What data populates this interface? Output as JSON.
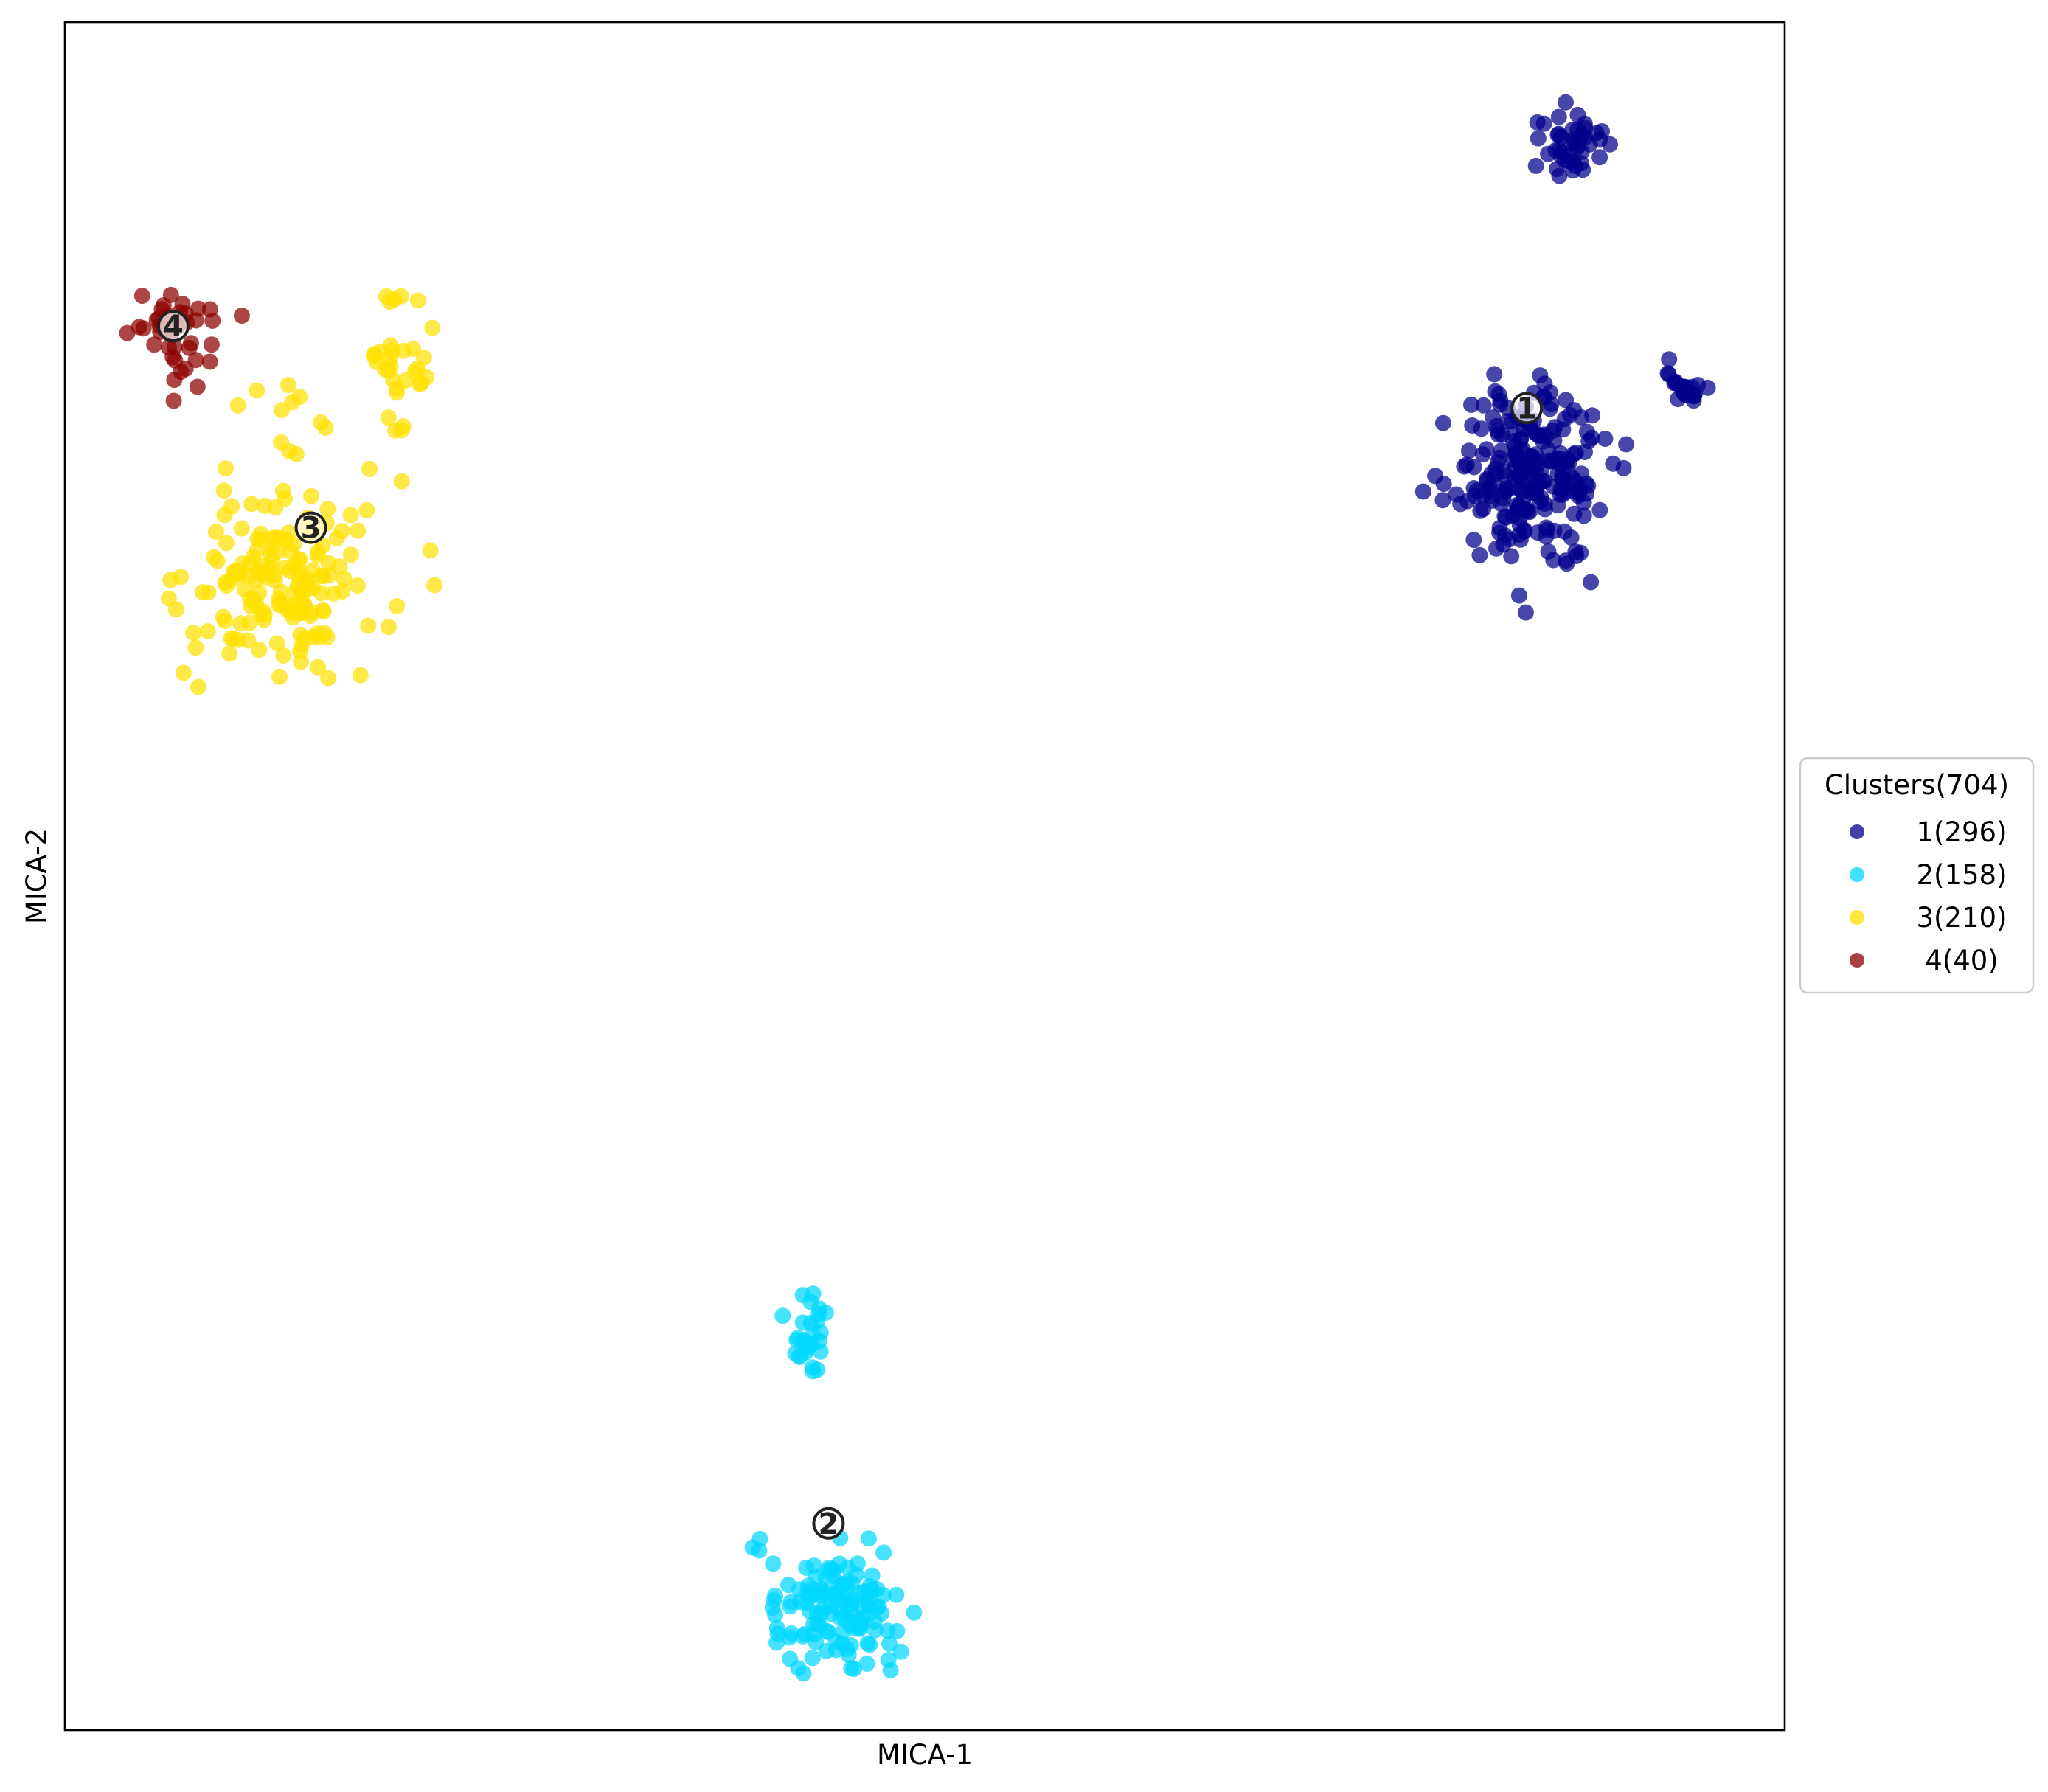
{
  "chart_data": {
    "type": "scatter",
    "title": "",
    "xlabel": "MICA-1",
    "ylabel": "MICA-2",
    "xlim": [
      0,
      100
    ],
    "ylim": [
      0,
      100
    ],
    "grid": false,
    "x_ticks_visible": false,
    "y_ticks_visible": false,
    "legend": {
      "title": "Clusters(704)",
      "placement": "right-outside-center",
      "entries": [
        "1(296)",
        "2(158)",
        "3(210)",
        "4(40)"
      ]
    },
    "series": [
      {
        "name": "1(296)",
        "cluster_label": "1",
        "color": "#00008B",
        "count": 296,
        "centroid": [
          85.0,
          77.4
        ],
        "regions": [
          {
            "cx": 85.3,
            "cy": 73.5,
            "sx": 2.3,
            "sy": 2.5,
            "fraction": 0.78
          },
          {
            "cx": 87.8,
            "cy": 92.8,
            "sx": 0.9,
            "sy": 1.1,
            "fraction": 0.15
          },
          {
            "cx": 94.2,
            "cy": 78.5,
            "sx": 0.6,
            "sy": 0.5,
            "fraction": 0.07
          }
        ]
      },
      {
        "name": "2(158)",
        "cluster_label": "2",
        "color": "#00D7FF",
        "count": 158,
        "centroid": [
          44.4,
          12.1
        ],
        "regions": [
          {
            "cx": 44.6,
            "cy": 7.0,
            "sx": 2.0,
            "sy": 1.7,
            "fraction": 0.82
          },
          {
            "cx": 43.4,
            "cy": 22.8,
            "sx": 0.5,
            "sy": 1.6,
            "fraction": 0.18
          }
        ]
      },
      {
        "name": "3(210)",
        "cluster_label": "3",
        "color": "#FFE000",
        "count": 210,
        "centroid": [
          14.3,
          70.4
        ],
        "regions": [
          {
            "cx": 12.8,
            "cy": 67.2,
            "sx": 2.6,
            "sy": 2.6,
            "fraction": 0.76
          },
          {
            "cx": 19.4,
            "cy": 79.8,
            "sx": 0.9,
            "sy": 2.5,
            "fraction": 0.16
          },
          {
            "cx": 12.0,
            "cy": 76.0,
            "sx": 2.0,
            "sy": 2.8,
            "fraction": 0.08
          }
        ]
      },
      {
        "name": "4(40)",
        "cluster_label": "4",
        "color": "#8B0000",
        "count": 40,
        "centroid": [
          6.3,
          82.2
        ],
        "regions": [
          {
            "cx": 6.2,
            "cy": 82.3,
            "sx": 1.2,
            "sy": 0.9,
            "fraction": 0.85
          },
          {
            "cx": 6.8,
            "cy": 78.9,
            "sx": 0.8,
            "sy": 0.9,
            "fraction": 0.15
          }
        ]
      }
    ]
  }
}
